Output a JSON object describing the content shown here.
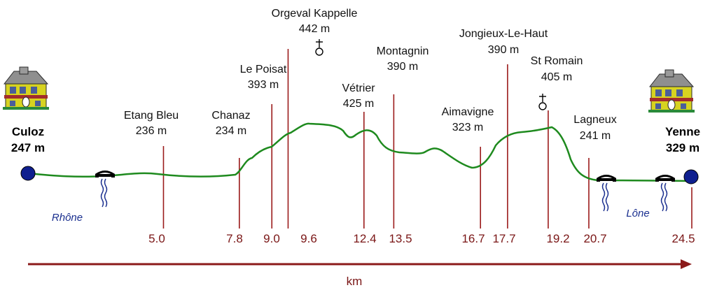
{
  "colors": {
    "profile": "#1e8a1e",
    "marker": "#9b1b1b",
    "axis": "#8b1a1a",
    "endpoint": "#0f1f8f",
    "house": "#d7d320",
    "river": "#1a2f8f"
  },
  "axis": {
    "unit": "km"
  },
  "start": {
    "name": "Culoz",
    "elevation": "247 m",
    "km": 0
  },
  "end": {
    "name": "Yenne",
    "elevation": "329 m",
    "km": "24.5"
  },
  "waypoints": [
    {
      "name": "Etang Bleu",
      "elevation": "236 m",
      "km": "5.0"
    },
    {
      "name": "Chanaz",
      "elevation": "234 m",
      "km": "7.8"
    },
    {
      "name": "Le Poisat",
      "elevation": "393 m",
      "km": "9.0"
    },
    {
      "name": "Orgeval Kappelle",
      "elevation": "442 m",
      "km": "9.6",
      "icon": "chapel-icon"
    },
    {
      "name": "Vétrier",
      "elevation": "425 m",
      "km": "12.4"
    },
    {
      "name": "Montagnin",
      "elevation": "390 m",
      "km": "13.5"
    },
    {
      "name": "Aimavigne",
      "elevation": "323 m",
      "km": "16.7"
    },
    {
      "name": "Jongieux-Le-Haut",
      "elevation": "390 m",
      "km": "17.7"
    },
    {
      "name": "St Romain",
      "elevation": "405 m",
      "km": "19.2",
      "icon": "chapel-icon"
    },
    {
      "name": "Lagneux",
      "elevation": "241 m",
      "km": "20.7"
    }
  ],
  "rivers": [
    {
      "name": "Rhône"
    },
    {
      "name": "Lône"
    }
  ],
  "icons": [
    "house-icon",
    "bridge-icon",
    "chapel-icon"
  ]
}
